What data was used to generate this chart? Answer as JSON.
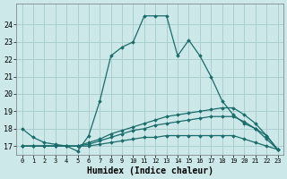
{
  "xlabel": "Humidex (Indice chaleur)",
  "bg_color": "#cce8e8",
  "grid_color": "#aacfcf",
  "line_color": "#1a6b6b",
  "xlim": [
    -0.5,
    23.5
  ],
  "ylim": [
    16.5,
    25.2
  ],
  "yticks": [
    17,
    18,
    19,
    20,
    21,
    22,
    23,
    24
  ],
  "xticks": [
    0,
    1,
    2,
    3,
    4,
    5,
    6,
    7,
    8,
    9,
    10,
    11,
    12,
    13,
    14,
    15,
    16,
    17,
    18,
    19,
    20,
    21,
    22,
    23
  ],
  "series": [
    {
      "x": [
        0,
        1,
        2,
        3,
        4,
        5,
        6,
        7,
        8,
        9,
        10,
        11,
        12,
        13,
        14,
        15,
        16,
        17,
        18,
        19,
        20,
        21,
        22,
        23
      ],
      "y": [
        18.0,
        17.5,
        17.2,
        17.1,
        17.0,
        16.7,
        17.6,
        19.6,
        22.2,
        22.7,
        23.0,
        24.5,
        24.5,
        24.5,
        22.2,
        23.1,
        22.2,
        21.0,
        19.6,
        18.8,
        18.3,
        18.0,
        17.6,
        16.8
      ]
    },
    {
      "x": [
        0,
        1,
        2,
        3,
        4,
        5,
        6,
        7,
        8,
        9,
        10,
        11,
        12,
        13,
        14,
        15,
        16,
        17,
        18,
        19,
        20,
        21,
        22,
        23
      ],
      "y": [
        17.0,
        17.0,
        17.0,
        17.0,
        17.0,
        17.0,
        17.2,
        17.4,
        17.7,
        17.9,
        18.1,
        18.3,
        18.5,
        18.7,
        18.8,
        18.9,
        19.0,
        19.1,
        19.2,
        19.2,
        18.8,
        18.3,
        17.6,
        16.8
      ]
    },
    {
      "x": [
        0,
        1,
        2,
        3,
        4,
        5,
        6,
        7,
        8,
        9,
        10,
        11,
        12,
        13,
        14,
        15,
        16,
        17,
        18,
        19,
        20,
        21,
        22,
        23
      ],
      "y": [
        17.0,
        17.0,
        17.0,
        17.0,
        17.0,
        17.0,
        17.1,
        17.3,
        17.5,
        17.7,
        17.9,
        18.0,
        18.2,
        18.3,
        18.4,
        18.5,
        18.6,
        18.7,
        18.7,
        18.7,
        18.4,
        18.0,
        17.4,
        16.8
      ]
    },
    {
      "x": [
        0,
        1,
        2,
        3,
        4,
        5,
        6,
        7,
        8,
        9,
        10,
        11,
        12,
        13,
        14,
        15,
        16,
        17,
        18,
        19,
        20,
        21,
        22,
        23
      ],
      "y": [
        17.0,
        17.0,
        17.0,
        17.0,
        17.0,
        17.0,
        17.0,
        17.1,
        17.2,
        17.3,
        17.4,
        17.5,
        17.5,
        17.6,
        17.6,
        17.6,
        17.6,
        17.6,
        17.6,
        17.6,
        17.4,
        17.2,
        17.0,
        16.8
      ]
    }
  ]
}
